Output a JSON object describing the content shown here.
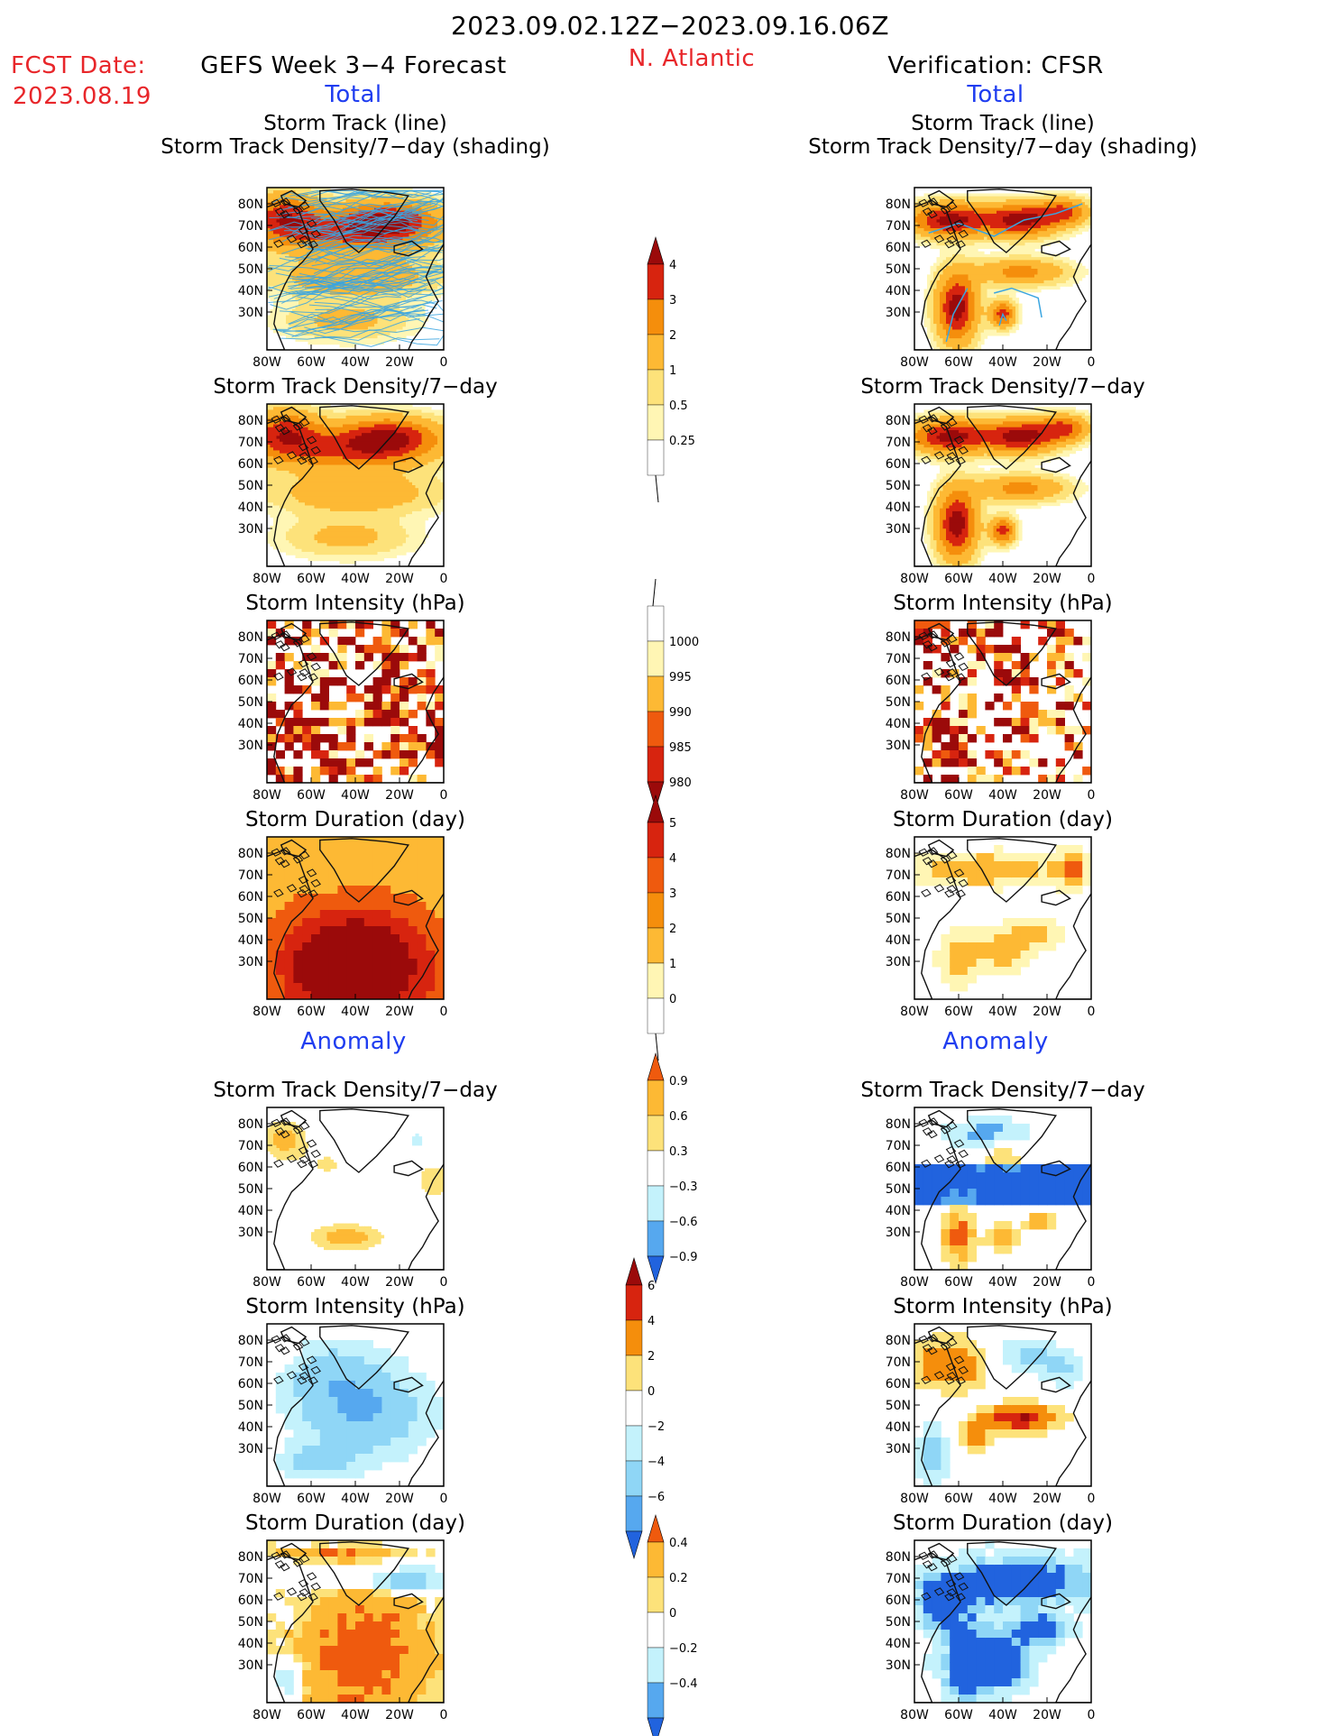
{
  "header": {
    "date_range": "2023.09.02.12Z−2023.09.16.06Z",
    "region": "N. Atlantic",
    "fcst_date_label": "FCST Date:",
    "fcst_date": "2023.08.19",
    "left_title": "GEFS Week 3−4 Forecast",
    "right_title": "Verification: CFSR"
  },
  "sections": {
    "total": "Total",
    "anomaly": "Anomaly"
  },
  "panel_titles": {
    "track_line": "Storm Track (line)",
    "track_shading": "Storm Track Density/7−day (shading)",
    "density": "Storm Track Density/7−day",
    "intensity": "Storm Intensity (hPa)",
    "duration": "Storm Duration (day)"
  },
  "axes": {
    "x_ticks": [
      "80W",
      "60W",
      "40W",
      "20W",
      "0"
    ],
    "y_ticks": [
      "80N",
      "70N",
      "60N",
      "50N",
      "40N",
      "30N"
    ]
  },
  "colorbars": {
    "density": [
      "4",
      "3",
      "2",
      "1",
      "0.5",
      "0.25"
    ],
    "intensity": [
      "1000",
      "995",
      "990",
      "985",
      "980"
    ],
    "duration": [
      "5",
      "4",
      "3",
      "2",
      "1",
      "0"
    ],
    "density_anom": [
      "0.9",
      "0.6",
      "0.3",
      "−0.3",
      "−0.6",
      "−0.9"
    ],
    "intensity_anom": [
      "6",
      "4",
      "2",
      "0",
      "−2",
      "−4",
      "−6"
    ],
    "duration_anom": [
      "0.4",
      "0.2",
      "0",
      "−0.2",
      "−0.4"
    ]
  },
  "colors": {
    "warm": [
      "#fff6b4",
      "#fde27a",
      "#fdb934",
      "#f58e0c",
      "#ef5a0e",
      "#d7240f",
      "#9b0a0a"
    ],
    "cool": [
      "#c4f2fc",
      "#8fd6f6",
      "#56a8ef",
      "#2163de"
    ],
    "track_line": "#3aa5e0",
    "title_red": "#e8262a",
    "title_blue": "#1f3df0"
  },
  "chart_data": [
    {
      "type": "heatmap",
      "panel": "GEFS total: Storm Track (line) over Storm Track Density/7-day (shading)",
      "xlim": [
        -80,
        0
      ],
      "ylim": [
        25,
        85
      ]
    },
    {
      "type": "heatmap",
      "panel": "CFSR total: Storm Track (line) over Storm Track Density/7-day (shading)",
      "xlim": [
        -80,
        0
      ],
      "ylim": [
        25,
        85
      ]
    },
    {
      "type": "heatmap",
      "panel": "GEFS total: Storm Track Density/7-day",
      "xlim": [
        -80,
        0
      ],
      "ylim": [
        25,
        85
      ]
    },
    {
      "type": "heatmap",
      "panel": "CFSR total: Storm Track Density/7-day",
      "xlim": [
        -80,
        0
      ],
      "ylim": [
        25,
        85
      ]
    },
    {
      "type": "heatmap",
      "panel": "GEFS total: Storm Intensity (hPa)",
      "xlim": [
        -80,
        0
      ],
      "ylim": [
        25,
        85
      ]
    },
    {
      "type": "heatmap",
      "panel": "CFSR total: Storm Intensity (hPa)",
      "xlim": [
        -80,
        0
      ],
      "ylim": [
        25,
        85
      ]
    },
    {
      "type": "heatmap",
      "panel": "GEFS total: Storm Duration (day)",
      "xlim": [
        -80,
        0
      ],
      "ylim": [
        25,
        85
      ]
    },
    {
      "type": "heatmap",
      "panel": "CFSR total: Storm Duration (day)",
      "xlim": [
        -80,
        0
      ],
      "ylim": [
        25,
        85
      ]
    },
    {
      "type": "heatmap",
      "panel": "GEFS anomaly: Storm Track Density/7-day",
      "xlim": [
        -80,
        0
      ],
      "ylim": [
        25,
        85
      ]
    },
    {
      "type": "heatmap",
      "panel": "CFSR anomaly: Storm Track Density/7-day",
      "xlim": [
        -80,
        0
      ],
      "ylim": [
        25,
        85
      ]
    },
    {
      "type": "heatmap",
      "panel": "GEFS anomaly: Storm Intensity (hPa)",
      "xlim": [
        -80,
        0
      ],
      "ylim": [
        25,
        85
      ]
    },
    {
      "type": "heatmap",
      "panel": "CFSR anomaly: Storm Intensity (hPa)",
      "xlim": [
        -80,
        0
      ],
      "ylim": [
        25,
        85
      ]
    },
    {
      "type": "heatmap",
      "panel": "GEFS anomaly: Storm Duration (day)",
      "xlim": [
        -80,
        0
      ],
      "ylim": [
        25,
        85
      ]
    },
    {
      "type": "heatmap",
      "panel": "CFSR anomaly: Storm Duration (day)",
      "xlim": [
        -80,
        0
      ],
      "ylim": [
        25,
        85
      ]
    }
  ]
}
